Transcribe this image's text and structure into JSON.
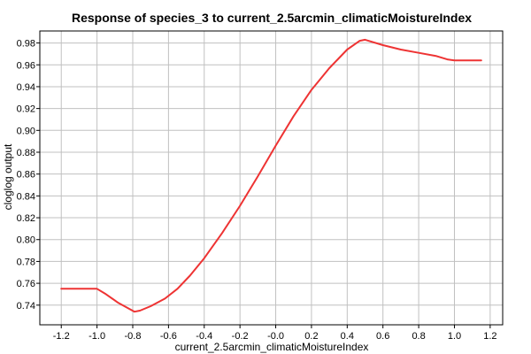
{
  "chart_data": {
    "type": "line",
    "title": "Response of species_3 to current_2.5arcmin_climaticMoistureIndex",
    "xlabel": "current_2.5arcmin_climaticMoistureIndex",
    "ylabel": "cloglog output",
    "xlim": [
      -1.32,
      1.27
    ],
    "ylim": [
      0.722,
      0.991
    ],
    "xticks": [
      -1.2,
      -1.0,
      -0.8,
      -0.6,
      -0.4,
      -0.2,
      0.0,
      0.2,
      0.4,
      0.6,
      0.8,
      1.0,
      1.2
    ],
    "xtick_labels": [
      "-1.2",
      "-1.0",
      "-0.8",
      "-0.6",
      "-0.4",
      "-0.2",
      "-0.0",
      "0.2",
      "0.4",
      "0.6",
      "0.8",
      "1.0",
      "1.2"
    ],
    "yticks": [
      0.74,
      0.76,
      0.78,
      0.8,
      0.82,
      0.84,
      0.86,
      0.88,
      0.9,
      0.92,
      0.94,
      0.96,
      0.98
    ],
    "ytick_labels": [
      "0.74",
      "0.76",
      "0.78",
      "0.80",
      "0.82",
      "0.84",
      "0.86",
      "0.88",
      "0.90",
      "0.92",
      "0.94",
      "0.96",
      "0.98"
    ],
    "grid": true,
    "line_color": "#ee3333",
    "series": [
      {
        "x": [
          -1.2,
          -1.0,
          -0.95,
          -0.88,
          -0.79,
          -0.76,
          -0.7,
          -0.62,
          -0.55,
          -0.48,
          -0.4,
          -0.3,
          -0.2,
          -0.1,
          0.0,
          0.1,
          0.2,
          0.3,
          0.4,
          0.47,
          0.5,
          0.6,
          0.7,
          0.8,
          0.9,
          0.96,
          1.0,
          1.15
        ],
        "y": [
          0.755,
          0.755,
          0.75,
          0.742,
          0.734,
          0.735,
          0.739,
          0.746,
          0.755,
          0.767,
          0.783,
          0.806,
          0.831,
          0.858,
          0.886,
          0.913,
          0.937,
          0.957,
          0.974,
          0.982,
          0.983,
          0.978,
          0.974,
          0.971,
          0.968,
          0.965,
          0.964,
          0.964
        ]
      }
    ]
  }
}
